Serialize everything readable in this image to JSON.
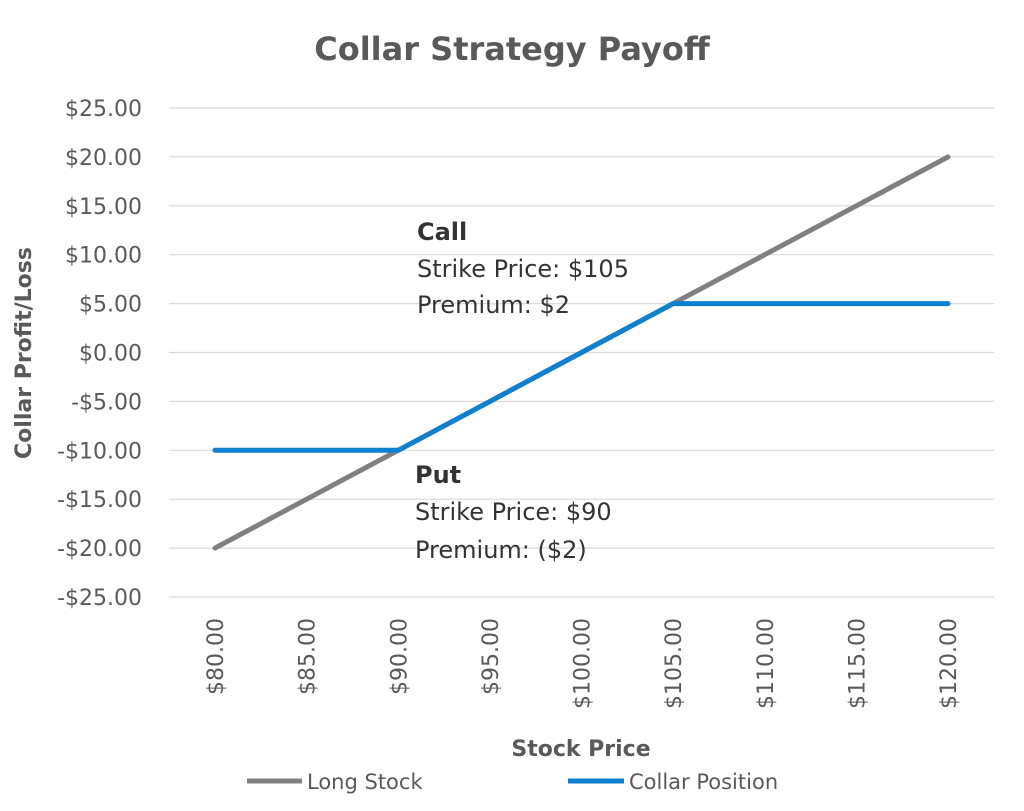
{
  "chart_data": {
    "type": "line",
    "title": "Collar Strategy Payoff",
    "xlabel": "Stock Price",
    "ylabel": "Collar Profit/Loss",
    "x": [
      80,
      85,
      90,
      95,
      100,
      105,
      110,
      115,
      120
    ],
    "x_tick_labels": [
      "$80.00",
      "$85.00",
      "$90.00",
      "$95.00",
      "$100.00",
      "$105.00",
      "$110.00",
      "$115.00",
      "$120.00"
    ],
    "ylim": [
      -25,
      25
    ],
    "y_ticks": [
      25,
      20,
      15,
      10,
      5,
      0,
      -5,
      -10,
      -15,
      -20,
      -25
    ],
    "y_tick_labels": [
      "$25.00",
      "$20.00",
      "$15.00",
      "$10.00",
      "$5.00",
      "$0.00",
      "-$5.00",
      "-$10.00",
      "-$15.00",
      "-$20.00",
      "-$25.00"
    ],
    "grid": true,
    "legend_position": "bottom",
    "series": [
      {
        "name": "Long Stock",
        "color": "#808080",
        "values": [
          -20,
          -15,
          -10,
          -5,
          0,
          5,
          10,
          15,
          20
        ]
      },
      {
        "name": "Collar Position",
        "color": "#0f7fcf",
        "values": [
          -10,
          -10,
          -10,
          -5,
          0,
          5,
          5,
          5,
          5
        ]
      }
    ],
    "annotations": [
      {
        "id": "call",
        "heading": "Call",
        "lines": [
          "Strike Price: $105",
          "Premium: $2"
        ]
      },
      {
        "id": "put",
        "heading": "Put",
        "lines": [
          "Strike Price: $90",
          "Premium: ($2)"
        ]
      }
    ]
  }
}
